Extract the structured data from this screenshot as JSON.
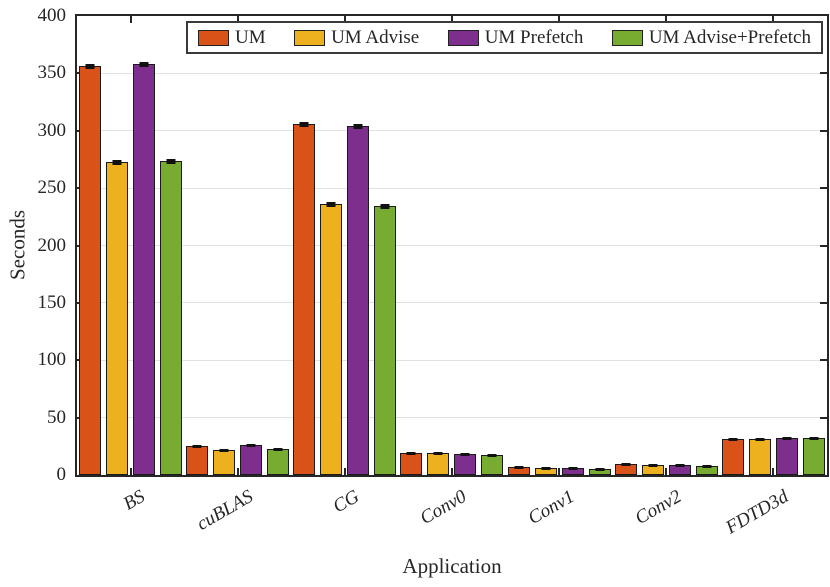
{
  "chart_data": {
    "type": "bar",
    "title": "",
    "categories": [
      "BS",
      "cuBLAS",
      "CG",
      "Conv0",
      "Conv1",
      "Conv2",
      "FDTD3d"
    ],
    "series": [
      {
        "name": "UM",
        "color": "#D95319",
        "values": [
          356,
          25,
          306,
          19,
          7,
          10,
          31
        ],
        "errors": [
          2,
          1,
          2,
          1,
          0.5,
          0.5,
          1
        ]
      },
      {
        "name": "UM Advise",
        "color": "#EDB120",
        "values": [
          273,
          22,
          236,
          19,
          6,
          9,
          31
        ],
        "errors": [
          2,
          1,
          2,
          1,
          0.5,
          0.5,
          1
        ]
      },
      {
        "name": "UM Prefetch",
        "color": "#7E2F8E",
        "values": [
          358,
          26,
          304,
          18,
          6,
          9,
          32
        ],
        "errors": [
          2,
          1,
          2,
          1,
          0.5,
          0.5,
          1
        ]
      },
      {
        "name": "UM Advise+Prefetch",
        "color": "#77AC30",
        "values": [
          274,
          23,
          234,
          17,
          5,
          8,
          32
        ],
        "errors": [
          2,
          1,
          2,
          1,
          0.5,
          0.5,
          1
        ]
      }
    ],
    "xlabel": "Application",
    "ylabel": "Seconds",
    "ylim": [
      0,
      400
    ],
    "ytick_step": 50,
    "ytick_labels": [
      "0",
      "50",
      "100",
      "150",
      "200",
      "250",
      "300",
      "350",
      "400"
    ],
    "grid": "horizontal",
    "legend_position": "top",
    "axis_color": "#262626",
    "gridline_color": "#e2e2e2"
  }
}
